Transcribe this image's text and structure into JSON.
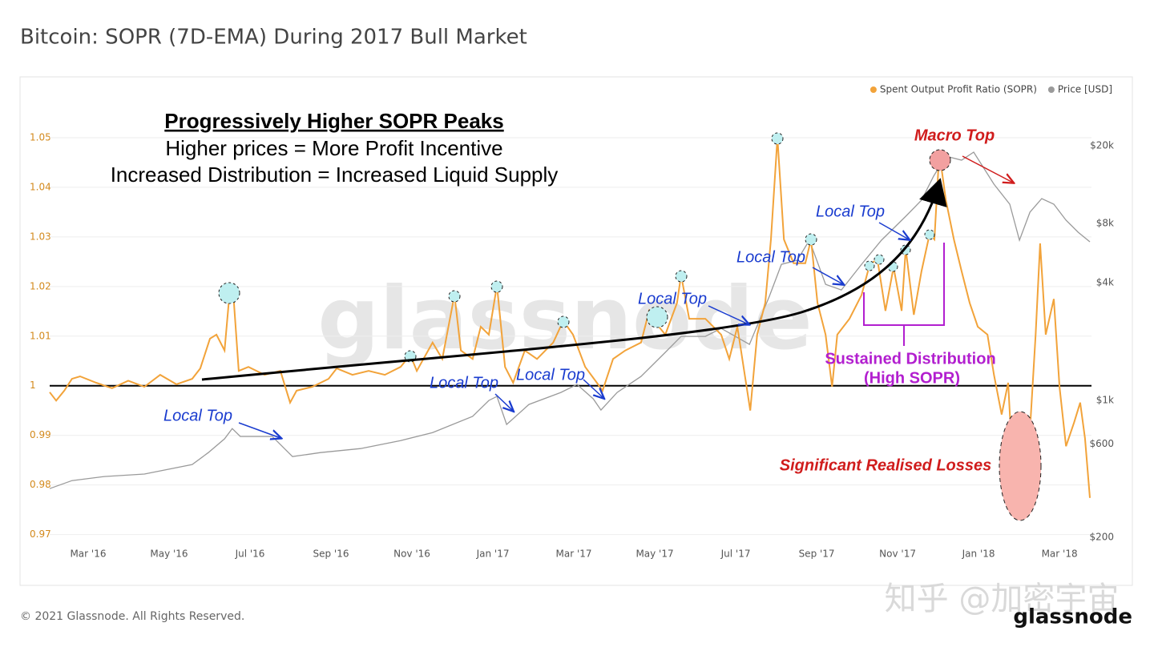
{
  "chart_data": {
    "type": "line",
    "title": "Bitcoin: SOPR (7D-EMA) During 2017 Bull Market",
    "footer": "© 2021 Glassnode. All Rights Reserved.",
    "logo": "glassnode",
    "watermark": "glassnode",
    "source_watermark": "知乎 @加密宇宙",
    "annotations": [
      "Progressively Higher SOPR Peaks",
      "Higher prices = More Profit Incentive",
      "Increased Distribution = Increased Liquid Supply",
      "Macro Top",
      "Local Top",
      "Local Top",
      "Local Top",
      "Local Top",
      "Local Top",
      "Local Top",
      "Sustained Distribution",
      "(High SOPR)",
      "Significant Realised Losses"
    ],
    "xlim": [
      1.05,
      26.79
    ],
    "xticks": [
      {
        "value": 2,
        "label": "Mar '16"
      },
      {
        "value": 4,
        "label": "May '16"
      },
      {
        "value": 6,
        "label": "Jul '16"
      },
      {
        "value": 8,
        "label": "Sep '16"
      },
      {
        "value": 10,
        "label": "Nov '16"
      },
      {
        "value": 12,
        "label": "Jan '17"
      },
      {
        "value": 14,
        "label": "Mar '17"
      },
      {
        "value": 16,
        "label": "May '17"
      },
      {
        "value": 18,
        "label": "Jul '17"
      },
      {
        "value": 20,
        "label": "Sep '17"
      },
      {
        "value": 22,
        "label": "Nov '17"
      },
      {
        "value": 24,
        "label": "Jan '18"
      },
      {
        "value": 26,
        "label": "Mar '18"
      }
    ],
    "ylim": [
      0.968,
      1.06
    ],
    "yticks": [
      0.97,
      0.98,
      0.99,
      1,
      1.01,
      1.02,
      1.03,
      1.04,
      1.05
    ],
    "y2lim": [
      184,
      39300
    ],
    "y2scale": "log",
    "y2ticks": [
      {
        "value": 200,
        "label": "$200"
      },
      {
        "value": 600,
        "label": "$600"
      },
      {
        "value": 1000,
        "label": "$1k"
      },
      {
        "value": 4000,
        "label": "$4k"
      },
      {
        "value": 8000,
        "label": "$8k"
      },
      {
        "value": 20000,
        "label": "$20k"
      }
    ],
    "grid": true,
    "legend": "top-right",
    "series": [
      {
        "name": "Spent Output Profit Ratio (SOPR)",
        "color": "#f2a33a",
        "x": [
          1.05,
          1.21,
          1.41,
          1.6,
          1.8,
          2.2,
          2.59,
          2.99,
          3.39,
          3.78,
          4.18,
          4.57,
          4.77,
          5.01,
          5.17,
          5.37,
          5.5,
          5.6,
          5.72,
          5.96,
          6.36,
          6.75,
          6.99,
          7.15,
          7.54,
          7.94,
          8.14,
          8.53,
          8.93,
          9.33,
          9.72,
          9.96,
          10.12,
          10.51,
          10.75,
          11.05,
          11.21,
          11.5,
          11.7,
          11.9,
          12.1,
          12.3,
          12.5,
          12.79,
          13.09,
          13.49,
          13.74,
          13.98,
          14.28,
          14.57,
          14.71,
          14.97,
          15.27,
          15.66,
          15.86,
          16.02,
          16.26,
          16.55,
          16.65,
          16.85,
          17.25,
          17.64,
          17.84,
          18.04,
          18.36,
          18.53,
          18.73,
          18.87,
          19.03,
          19.19,
          19.43,
          19.72,
          19.86,
          20.02,
          20.22,
          20.38,
          20.51,
          20.81,
          21.11,
          21.31,
          21.5,
          21.7,
          21.9,
          22.1,
          22.2,
          22.4,
          22.59,
          22.79,
          22.91,
          23.03,
          23.19,
          23.39,
          23.58,
          23.78,
          23.98,
          24.22,
          24.38,
          24.57,
          24.73,
          24.87,
          25.01,
          25.13,
          25.27,
          25.41,
          25.52,
          25.66,
          25.86,
          26.0,
          26.16,
          26.36,
          26.51,
          26.63,
          26.75
        ],
        "values": [
          0.9987,
          0.997,
          0.999,
          1.0014,
          1.0019,
          1.0006,
          0.9995,
          1.001,
          0.9998,
          1.0022,
          1.0003,
          1.0014,
          1.0035,
          1.0095,
          1.0103,
          1.0071,
          1.0191,
          1.017,
          1.003,
          1.0038,
          1.0022,
          1.003,
          0.9966,
          0.999,
          0.9998,
          1.0014,
          1.0035,
          1.0022,
          1.003,
          1.0022,
          1.0038,
          1.0062,
          1.003,
          1.0087,
          1.0054,
          1.0183,
          1.0071,
          1.0054,
          1.0119,
          1.0103,
          1.0202,
          1.0038,
          1.0006,
          1.0071,
          1.0054,
          1.0087,
          1.0131,
          1.0103,
          1.0038,
          1.0006,
          0.999,
          1.0054,
          1.0071,
          1.0087,
          1.0151,
          1.0127,
          1.0103,
          1.0167,
          1.0223,
          1.0135,
          1.0135,
          1.0103,
          1.0054,
          1.0119,
          0.995,
          1.0103,
          1.0167,
          1.0295,
          1.05,
          1.0295,
          1.0247,
          1.0247,
          1.0295,
          1.0167,
          1.0103,
          0.9998,
          1.0103,
          1.0135,
          1.0183,
          1.0244,
          1.0255,
          1.0151,
          1.0239,
          1.0151,
          1.0276,
          1.0143,
          1.0231,
          1.0306,
          1.0295,
          1.0471,
          1.0375,
          1.0295,
          1.0231,
          1.0167,
          1.0119,
          1.0103,
          1.0022,
          0.9942,
          1.0006,
          0.9798,
          0.9878,
          0.9782,
          0.991,
          1.0103,
          1.0287,
          1.0103,
          1.0175,
          0.9998,
          0.9878,
          0.9926,
          0.9966,
          0.9894,
          0.9774
        ]
      },
      {
        "name": "Price [USD]",
        "color": "#9a9a9a",
        "axis": "y2",
        "x": [
          1.05,
          1.6,
          2.4,
          3.39,
          4.57,
          4.97,
          5.37,
          5.56,
          5.76,
          6.55,
          7.05,
          7.74,
          8.73,
          9.72,
          10.51,
          11.5,
          11.9,
          12.1,
          12.34,
          12.89,
          13.68,
          14.08,
          14.48,
          14.67,
          15.07,
          15.66,
          16.26,
          16.65,
          17.25,
          17.64,
          18.34,
          18.83,
          19.13,
          19.52,
          19.82,
          20.22,
          20.61,
          21.11,
          21.6,
          22.2,
          22.59,
          22.89,
          23.19,
          23.58,
          23.88,
          24.38,
          24.77,
          25.01,
          25.27,
          25.56,
          25.86,
          26.16,
          26.46,
          26.75
        ],
        "values": [
          355,
          390,
          409,
          421,
          471,
          542,
          637,
          719,
          655,
          655,
          517,
          542,
          568,
          624,
          686,
          829,
          1000,
          1048,
          754,
          954,
          1099,
          1207,
          1019,
          893,
          1099,
          1327,
          1760,
          2124,
          2124,
          2333,
          1933,
          3400,
          4955,
          5194,
          6573,
          3915,
          3665,
          4955,
          6573,
          8715,
          10522,
          13953,
          17660,
          16845,
          18513,
          12700,
          10037,
          6573,
          9138,
          10722,
          10037,
          8317,
          7220,
          6450
        ]
      }
    ]
  }
}
